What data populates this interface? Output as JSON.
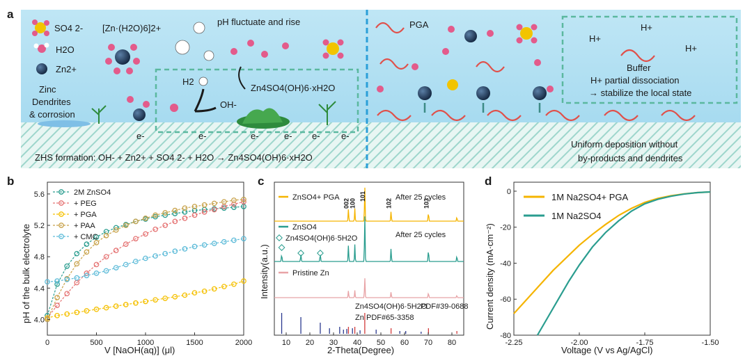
{
  "panel_a": {
    "label": "a",
    "legend": {
      "so4": "SO4 2-",
      "zn_complex": "[Zn·(H2O)6]2+",
      "h2o": "H2O",
      "zn": "Zn2+"
    },
    "ph_text": "pH fluctuate and rise",
    "h2_label": "H2",
    "zhs_label": "Zn4SO4(OH)6·xH2O",
    "oh_label": "OH-",
    "electron_label": "e-",
    "dendrite_text": [
      "Zinc",
      "Dendrites",
      "& corrosion"
    ],
    "zhs_formation": "ZHS formation:  OH- + Zn2+ + SO4 2- + H2O → Zn4SO4(OH)6·xH2O",
    "pga_label": "PGA",
    "h_plus": "H+",
    "buffer_title": "Buffer",
    "buffer_lines": [
      "H+ partial dissociation",
      "→ stabilize the local state"
    ],
    "uniform_lines": [
      "Uniform deposition without",
      "by-products and dendrites"
    ]
  },
  "panel_b": {
    "label": "b",
    "chart_data": {
      "type": "scatter",
      "xlabel": "V [NaOH(aq)] (μl)",
      "ylabel": "pH of the bulk electrolyte",
      "xlim": [
        0,
        2000
      ],
      "ylim": [
        3.8,
        5.75
      ],
      "xticks": [
        0,
        500,
        1000,
        1500,
        2000
      ],
      "yticks": [
        4.0,
        4.4,
        4.8,
        5.2,
        5.6
      ],
      "series": [
        {
          "name": "2M ZnSO4",
          "color": "#2a9d8f",
          "x": [
            0,
            100,
            200,
            300,
            400,
            500,
            600,
            700,
            800,
            900,
            1000,
            1100,
            1200,
            1300,
            1400,
            1500,
            1600,
            1700,
            1800,
            1900,
            2000
          ],
          "values": [
            4.05,
            4.45,
            4.68,
            4.84,
            4.96,
            5.05,
            5.12,
            5.17,
            5.21,
            5.25,
            5.28,
            5.31,
            5.33,
            5.35,
            5.37,
            5.39,
            5.4,
            5.41,
            5.42,
            5.43,
            5.44
          ]
        },
        {
          "name": "+ PEG",
          "color": "#e57373",
          "x": [
            0,
            100,
            200,
            300,
            400,
            500,
            600,
            700,
            800,
            900,
            1000,
            1100,
            1200,
            1300,
            1400,
            1500,
            1600,
            1700,
            1800,
            1900,
            2000
          ],
          "values": [
            4.02,
            4.18,
            4.33,
            4.47,
            4.59,
            4.7,
            4.8,
            4.88,
            4.96,
            5.03,
            5.09,
            5.15,
            5.2,
            5.25,
            5.29,
            5.33,
            5.37,
            5.4,
            5.44,
            5.47,
            5.5
          ]
        },
        {
          "name": "+ PGA",
          "color": "#f5c000",
          "x": [
            0,
            100,
            200,
            300,
            400,
            500,
            600,
            700,
            800,
            900,
            1000,
            1100,
            1200,
            1300,
            1400,
            1500,
            1600,
            1700,
            1800,
            1900,
            2000
          ],
          "values": [
            4.02,
            4.05,
            4.07,
            4.09,
            4.11,
            4.13,
            4.15,
            4.17,
            4.19,
            4.21,
            4.23,
            4.25,
            4.27,
            4.29,
            4.31,
            4.34,
            4.36,
            4.39,
            4.42,
            4.45,
            4.49
          ]
        },
        {
          "name": "+ PAA",
          "color": "#c8a24a",
          "x": [
            0,
            100,
            200,
            300,
            400,
            500,
            600,
            700,
            800,
            900,
            1000,
            1100,
            1200,
            1300,
            1400,
            1500,
            1600,
            1700,
            1800,
            1900,
            2000
          ],
          "values": [
            4.0,
            4.28,
            4.52,
            4.71,
            4.86,
            4.98,
            5.07,
            5.14,
            5.2,
            5.25,
            5.29,
            5.33,
            5.36,
            5.39,
            5.42,
            5.44,
            5.46,
            5.48,
            5.5,
            5.52,
            5.53
          ]
        },
        {
          "name": "+ CMC",
          "color": "#5fbcd9",
          "x": [
            0,
            100,
            200,
            300,
            400,
            500,
            600,
            700,
            800,
            900,
            1000,
            1100,
            1200,
            1300,
            1400,
            1500,
            1600,
            1700,
            1800,
            1900,
            2000
          ],
          "values": [
            4.48,
            4.49,
            4.51,
            4.53,
            4.56,
            4.59,
            4.62,
            4.66,
            4.7,
            4.74,
            4.78,
            4.81,
            4.84,
            4.87,
            4.9,
            4.93,
            4.95,
            4.97,
            4.99,
            5.01,
            5.03
          ]
        }
      ]
    }
  },
  "panel_c": {
    "label": "c",
    "chart_data": {
      "type": "line",
      "xlabel": "2-Theta(Degree)",
      "ylabel": "Intensity(a.u.)",
      "xlim": [
        5,
        85
      ],
      "xticks": [
        10,
        20,
        30,
        40,
        50,
        60,
        70,
        80
      ],
      "series": [
        {
          "name": "ZnSO4+ PGA",
          "note": "After 25 cycles",
          "color": "#f5b400"
        },
        {
          "name": "ZnSO4",
          "note": "After 25 cycles",
          "color": "#2a9d8f"
        },
        {
          "name": "Pristine Zn",
          "color": "#e8a3a6"
        }
      ],
      "peak_labels": [
        "002",
        "100",
        "101",
        "102",
        "103"
      ],
      "zhs_legend": "Zn4SO4(OH)6·5H2O",
      "references": [
        {
          "name": "Zn4SO4(OH)6·5H2O",
          "pdf": "PDF#39-0688",
          "color": "#2b3a8f",
          "peaks": [
            8.1,
            16.2,
            24.4,
            28.3,
            32.6,
            34.2,
            35.6,
            38.0,
            41.2,
            48.0,
            58.0,
            60.5,
            67.0
          ]
        },
        {
          "name": "Zn",
          "pdf": "PDF#65-3358",
          "color": "#d23b3b",
          "peaks": [
            36.3,
            39.0,
            43.2,
            54.3,
            70.1,
            82.1
          ]
        }
      ]
    }
  },
  "panel_d": {
    "label": "d",
    "chart_data": {
      "type": "line",
      "xlabel": "Voltage (V vs Ag/AgCl)",
      "ylabel": "Current density (mA·cm⁻²)",
      "xlim": [
        -2.25,
        -1.5
      ],
      "ylim": [
        -80,
        5
      ],
      "xticks": [
        -2.25,
        -2.0,
        -1.75,
        -1.5
      ],
      "xtick_labels": [
        "-2.25",
        "-2.00",
        "-1.75",
        "-1.50"
      ],
      "yticks": [
        0,
        -20,
        -40,
        -60,
        -80
      ],
      "series": [
        {
          "name": "1M Na2SO4+ PGA",
          "color": "#f5b400",
          "x": [
            -2.25,
            -2.2,
            -2.15,
            -2.1,
            -2.05,
            -2.0,
            -1.95,
            -1.9,
            -1.85,
            -1.8,
            -1.75,
            -1.7,
            -1.65,
            -1.6,
            -1.55,
            -1.5
          ],
          "values": [
            -68,
            -60,
            -52,
            -44,
            -37,
            -30,
            -24,
            -18.5,
            -13.5,
            -9.5,
            -6.2,
            -4,
            -2.5,
            -1.5,
            -0.8,
            -0.4
          ]
        },
        {
          "name": "1M Na2SO4",
          "color": "#2a9d8f",
          "x": [
            -2.16,
            -2.12,
            -2.08,
            -2.04,
            -2.0,
            -1.95,
            -1.9,
            -1.85,
            -1.8,
            -1.75,
            -1.7,
            -1.65,
            -1.6,
            -1.55,
            -1.5
          ],
          "values": [
            -80,
            -70,
            -60,
            -50,
            -41,
            -31,
            -23,
            -16.5,
            -11,
            -7,
            -4.5,
            -2.8,
            -1.6,
            -0.8,
            -0.4
          ]
        }
      ]
    }
  }
}
